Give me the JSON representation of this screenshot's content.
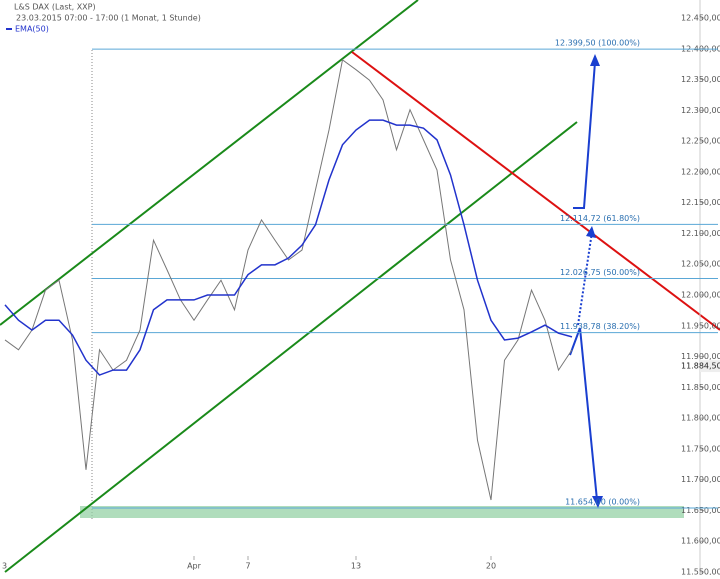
{
  "header": {
    "title": "L&S DAX (Last, XXP)",
    "subtitle": "23.03.2015 07:00 - 17:00 (1 Monat, 1 Stunde)"
  },
  "chart_data": {
    "type": "line",
    "categories": [
      null,
      null,
      null,
      null,
      null,
      null,
      null,
      null,
      null,
      null,
      null,
      null,
      null,
      null,
      "Apr",
      null,
      null,
      null,
      "7",
      null,
      null,
      null,
      null,
      null,
      null,
      null,
      "13",
      null,
      null,
      null,
      null,
      null,
      null,
      null,
      null,
      null,
      "20",
      null,
      null,
      null,
      null,
      null,
      null
    ],
    "first_tick_label": "3",
    "series": [
      {
        "name": "L&S DAX",
        "color": "#777777",
        "values": [
          11927,
          11911,
          11943,
          12008,
          12024,
          11927,
          11716,
          11911,
          11878,
          11894,
          11943,
          12089,
          12041,
          11992,
          11959,
          11992,
          12024,
          11976,
          12073,
          12122,
          12089,
          12057,
          12073,
          12171,
          12268,
          12382,
          12366,
          12349,
          12317,
          12236,
          12301,
          12252,
          12203,
          12057,
          11976,
          11764,
          11667,
          11894,
          11927,
          12008,
          11959,
          11878,
          11911
        ]
      },
      {
        "name": "EMA(50)",
        "color": "#2233cc",
        "values": [
          11984,
          11959,
          11943,
          11959,
          11959,
          11935,
          11894,
          11870,
          11878,
          11878,
          11911,
          11976,
          11992,
          11992,
          11992,
          12000,
          12000,
          12000,
          12033,
          12049,
          12049,
          12060,
          12081,
          12114,
          12187,
          12244,
          12268,
          12284,
          12284,
          12276,
          12276,
          12271,
          12252,
          12195,
          12114,
          12024,
          11959,
          11927,
          11930,
          11940,
          11951,
          11938,
          11932
        ]
      }
    ],
    "ylim": [
      11550,
      12450
    ],
    "yticks": [
      {
        "value": 11550,
        "label": "11.550,00"
      },
      {
        "value": 11600,
        "label": "11.600,00"
      },
      {
        "value": 11650,
        "label": "11.650,00"
      },
      {
        "value": 11700,
        "label": "11.700,00"
      },
      {
        "value": 11750,
        "label": "11.750,00"
      },
      {
        "value": 11800,
        "label": "11.800,00"
      },
      {
        "value": 11850,
        "label": "11.850,00"
      },
      {
        "value": 11900,
        "label": "11.900,00"
      },
      {
        "value": 11950,
        "label": "11.950,00"
      },
      {
        "value": 12000,
        "label": "12.000,00"
      },
      {
        "value": 12050,
        "label": "12.050,00"
      },
      {
        "value": 12100,
        "label": "12.100,00"
      },
      {
        "value": 12150,
        "label": "12.150,00"
      },
      {
        "value": 12200,
        "label": "12.200,00"
      },
      {
        "value": 12250,
        "label": "12.250,00"
      },
      {
        "value": 12300,
        "label": "12.300,00"
      },
      {
        "value": 12350,
        "label": "12.350,00"
      },
      {
        "value": 12400,
        "label": "12.400,00"
      },
      {
        "value": 12450,
        "label": "12.450,00"
      }
    ],
    "levels": [
      {
        "value": 12399.5,
        "label": "12.399,50 (100.00%)"
      },
      {
        "value": 12114.72,
        "label": "12.114,72 (61.80%)"
      },
      {
        "value": 12026.75,
        "label": "12.026,75 (50.00%)"
      },
      {
        "value": 11938.78,
        "label": "11.938,78 (38.20%)"
      },
      {
        "value": 11654,
        "label": "11.654,00 (0.00%)"
      }
    ],
    "last_price": {
      "value": 11884.5,
      "label": "11.884,50"
    }
  }
}
